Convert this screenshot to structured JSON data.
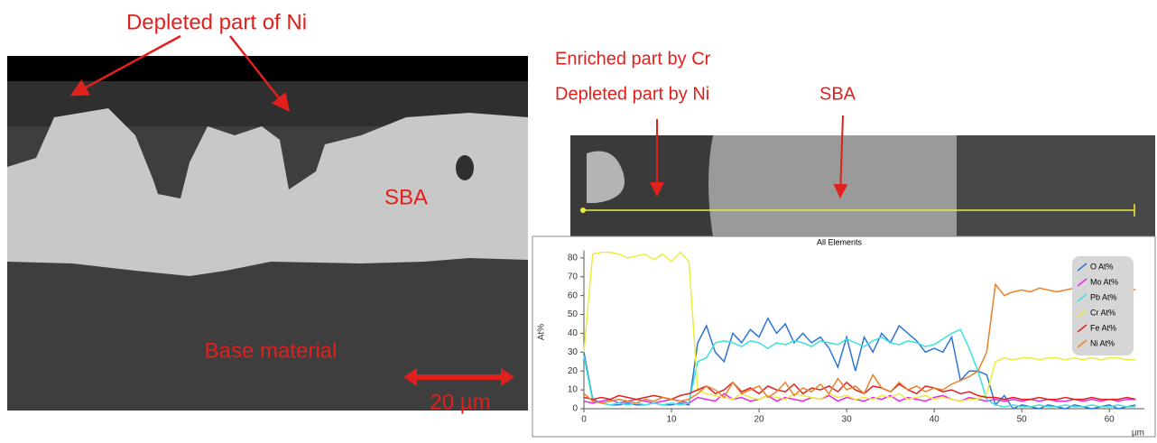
{
  "left_image": {
    "title": "Depleted part of Ni",
    "labels": [
      "SBA",
      "Base material"
    ],
    "scale_bar": "20 µm"
  },
  "right_image": {
    "labels": [
      "Enriched part by Cr",
      "Depleted part by Ni",
      "SBA"
    ]
  },
  "chart_data": {
    "type": "line",
    "title": "All Elements",
    "x_label": "µm",
    "y_label": "At%",
    "x": [
      0,
      1,
      2,
      3,
      4,
      5,
      6,
      7,
      8,
      9,
      10,
      11,
      12,
      13,
      14,
      15,
      16,
      17,
      18,
      19,
      20,
      21,
      22,
      23,
      24,
      25,
      26,
      27,
      28,
      29,
      30,
      31,
      32,
      33,
      34,
      35,
      36,
      37,
      38,
      39,
      40,
      41,
      42,
      43,
      44,
      45,
      46,
      47,
      48,
      49,
      50,
      51,
      52,
      53,
      54,
      55,
      56,
      57,
      58,
      59,
      60,
      61,
      62,
      63
    ],
    "series": [
      {
        "name": "O At%",
        "color": "#2e75d6",
        "values": [
          30,
          5,
          3,
          2,
          2,
          3,
          2,
          2,
          3,
          2,
          2,
          3,
          2,
          35,
          44,
          30,
          25,
          40,
          35,
          42,
          38,
          48,
          40,
          45,
          35,
          40,
          35,
          38,
          32,
          22,
          38,
          20,
          38,
          30,
          40,
          35,
          44,
          40,
          36,
          30,
          32,
          30,
          38,
          15,
          20,
          20,
          18,
          2,
          7,
          0,
          2,
          1,
          0,
          2,
          1,
          0,
          2,
          1,
          0,
          1,
          2,
          0,
          1,
          2
        ]
      },
      {
        "name": "Mo At%",
        "color": "#e628e6",
        "values": [
          4,
          3,
          4,
          5,
          3,
          4,
          5,
          4,
          3,
          4,
          5,
          4,
          3,
          6,
          5,
          4,
          8,
          5,
          6,
          4,
          5,
          7,
          4,
          6,
          5,
          4,
          6,
          5,
          7,
          4,
          6,
          5,
          4,
          6,
          5,
          7,
          4,
          6,
          5,
          4,
          6,
          7,
          5,
          4,
          6,
          5,
          4,
          5,
          4,
          5,
          4,
          5,
          4,
          5,
          4,
          4,
          5,
          4,
          5,
          4,
          5,
          4,
          5,
          5
        ]
      },
      {
        "name": "Pb At%",
        "color": "#3ee0e0",
        "values": [
          28,
          4,
          3,
          2,
          3,
          2,
          3,
          2,
          3,
          2,
          3,
          2,
          3,
          25,
          27,
          35,
          36,
          35,
          33,
          36,
          35,
          32,
          35,
          34,
          36,
          35,
          33,
          36,
          35,
          34,
          37,
          35,
          33,
          36,
          38,
          35,
          34,
          36,
          35,
          33,
          34,
          37,
          40,
          42,
          32,
          20,
          5,
          2,
          1,
          2,
          1,
          1,
          2,
          1,
          1,
          2,
          1,
          1,
          2,
          1,
          1,
          2,
          1,
          1
        ]
      },
      {
        "name": "Cr At%",
        "color": "#ecec3c",
        "values": [
          30,
          82,
          83,
          83,
          82,
          80,
          81,
          82,
          79,
          82,
          78,
          83,
          78,
          10,
          8,
          7,
          6,
          5,
          8,
          6,
          5,
          7,
          6,
          5,
          8,
          7,
          6,
          5,
          8,
          6,
          7,
          5,
          6,
          5,
          7,
          6,
          8,
          5,
          6,
          7,
          5,
          6,
          5,
          4,
          5,
          5,
          8,
          25,
          27,
          26,
          27,
          27,
          26,
          27,
          27,
          26,
          27,
          26,
          27,
          26,
          27,
          27,
          26,
          26
        ]
      },
      {
        "name": "Fe At%",
        "color": "#e02020",
        "values": [
          6,
          5,
          6,
          5,
          7,
          6,
          5,
          6,
          7,
          6,
          5,
          7,
          8,
          10,
          12,
          8,
          10,
          14,
          9,
          11,
          8,
          12,
          10,
          9,
          13,
          8,
          11,
          10,
          12,
          9,
          14,
          10,
          8,
          12,
          11,
          9,
          13,
          10,
          8,
          12,
          11,
          9,
          10,
          8,
          9,
          7,
          6,
          6,
          5,
          6,
          5,
          5,
          6,
          5,
          5,
          6,
          5,
          5,
          6,
          5,
          5,
          5,
          6,
          5
        ]
      },
      {
        "name": "Ni At%",
        "color": "#e8822a",
        "values": [
          8,
          4,
          3,
          4,
          5,
          4,
          3,
          5,
          4,
          6,
          5,
          4,
          5,
          8,
          12,
          10,
          6,
          14,
          8,
          10,
          12,
          6,
          9,
          14,
          7,
          11,
          9,
          13,
          8,
          16,
          10,
          12,
          8,
          18,
          11,
          9,
          14,
          10,
          12,
          9,
          11,
          10,
          13,
          15,
          17,
          20,
          30,
          66,
          60,
          62,
          63,
          62,
          64,
          63,
          62,
          63,
          64,
          62,
          63,
          62,
          61,
          63,
          64,
          63
        ]
      }
    ],
    "xlim": [
      0,
      64
    ],
    "ylim": [
      0,
      84
    ],
    "xticks": [
      0,
      10,
      20,
      30,
      40,
      50,
      60
    ],
    "yticks": [
      0,
      10,
      20,
      30,
      40,
      50,
      60,
      70,
      80
    ],
    "grid": false,
    "legend": "top-right"
  }
}
